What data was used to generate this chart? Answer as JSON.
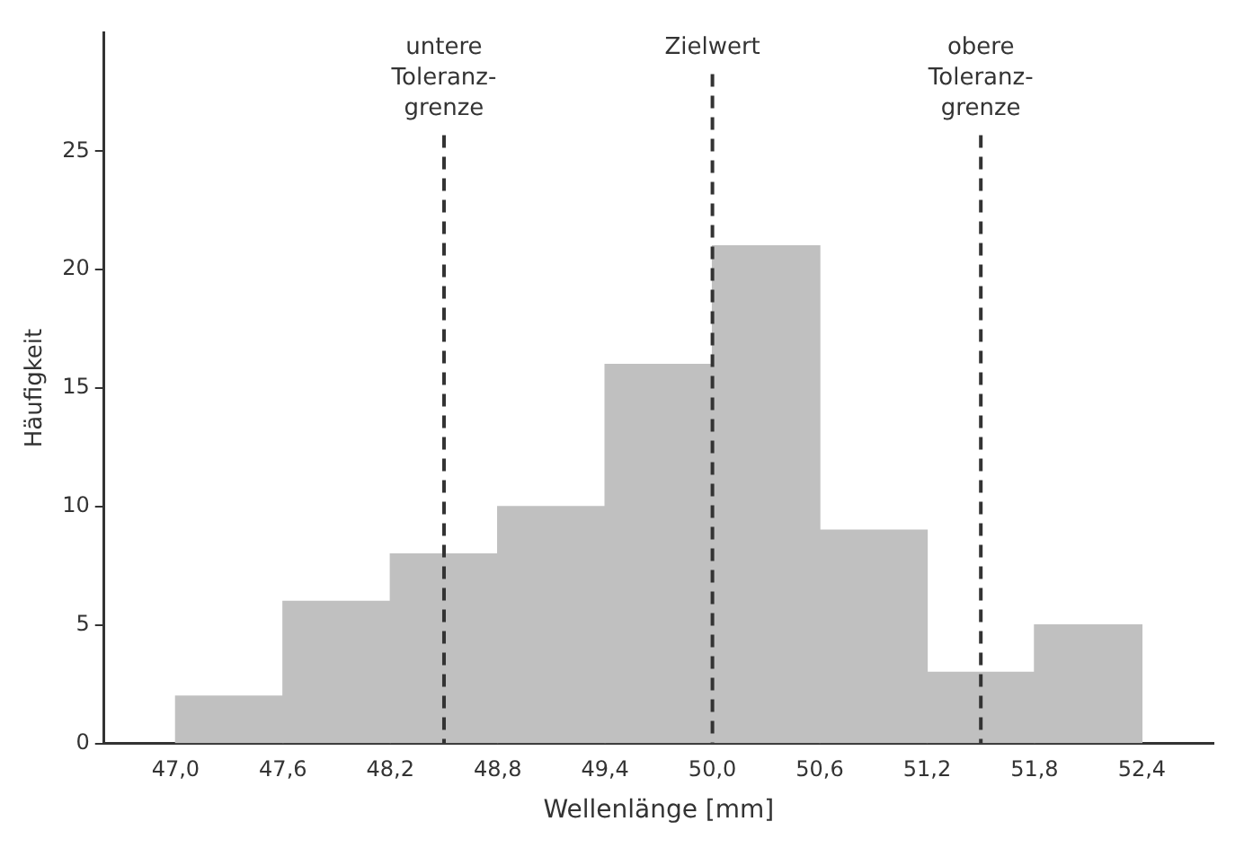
{
  "chart_data": {
    "type": "histogram",
    "xlabel": "Wellenlänge [mm]",
    "ylabel": "Häufigkeit",
    "bins": [
      47.0,
      47.6,
      48.2,
      48.8,
      49.4,
      50.0,
      50.6,
      51.2,
      51.8,
      52.4
    ],
    "values": [
      2,
      6,
      8,
      10,
      16,
      21,
      9,
      3,
      5
    ],
    "color": "#c0c0c0",
    "xlim": [
      46.6,
      52.8
    ],
    "xticks": [
      {
        "value": 47.0,
        "label": "47,0"
      },
      {
        "value": 47.6,
        "label": "47,6"
      },
      {
        "value": 48.2,
        "label": "48,2"
      },
      {
        "value": 48.8,
        "label": "48,8"
      },
      {
        "value": 49.4,
        "label": "49,4"
      },
      {
        "value": 50.0,
        "label": "50,0"
      },
      {
        "value": 50.6,
        "label": "50,6"
      },
      {
        "value": 51.2,
        "label": "51,2"
      },
      {
        "value": 51.8,
        "label": "51,8"
      },
      {
        "value": 52.4,
        "label": "52,4"
      }
    ],
    "ylim": [
      0,
      30
    ],
    "yticks": [
      0,
      5,
      10,
      15,
      20,
      25
    ],
    "grid": false,
    "legend": false,
    "ref_lines": [
      {
        "axis": "x",
        "value": 48.5,
        "label": "untere\nToleranz-\ngrenze",
        "line_style": "dashed",
        "color": "#333333"
      },
      {
        "axis": "x",
        "value": 50.0,
        "label": "Zielwert",
        "line_style": "dashed",
        "color": "#333333"
      },
      {
        "axis": "x",
        "value": 51.5,
        "label": "obere\nToleranz-\ngrenze",
        "line_style": "dashed",
        "color": "#333333"
      }
    ]
  }
}
